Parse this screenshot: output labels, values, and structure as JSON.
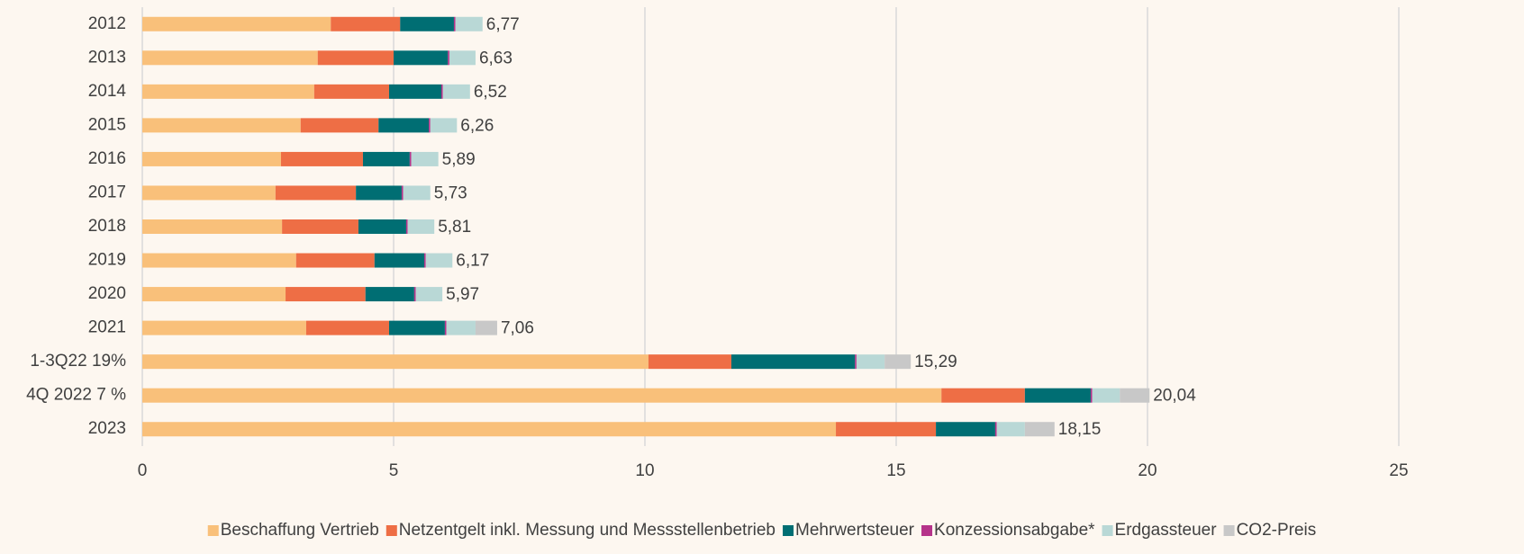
{
  "chart_data": {
    "type": "bar",
    "orientation": "horizontal",
    "stacked": true,
    "categories": [
      "2012",
      "2013",
      "2014",
      "2015",
      "2016",
      "2017",
      "2018",
      "2019",
      "2020",
      "2021",
      "1-3Q22 19%",
      "4Q 2022 7 %",
      "2023"
    ],
    "series": [
      {
        "name": "Beschaffung Vertrieb",
        "color": "#f9c07a",
        "values": [
          3.75,
          3.49,
          3.42,
          3.15,
          2.76,
          2.65,
          2.78,
          3.06,
          2.85,
          3.26,
          10.07,
          15.9,
          13.8
        ]
      },
      {
        "name": "Netzentgelt inkl. Messung und Messstellenbetrieb",
        "color": "#ee6e45",
        "values": [
          1.38,
          1.51,
          1.49,
          1.55,
          1.63,
          1.6,
          1.52,
          1.56,
          1.59,
          1.65,
          1.65,
          1.66,
          1.99
        ]
      },
      {
        "name": "Mehrwertsteuer",
        "color": "#006e73",
        "values": [
          1.07,
          1.08,
          1.04,
          1.0,
          0.93,
          0.91,
          0.95,
          0.99,
          0.97,
          1.11,
          2.46,
          1.31,
          1.18
        ]
      },
      {
        "name": "Konzessionsabgabe*",
        "color": "#b5338a",
        "values": [
          0.03,
          0.03,
          0.03,
          0.03,
          0.03,
          0.03,
          0.03,
          0.03,
          0.03,
          0.03,
          0.03,
          0.03,
          0.03
        ]
      },
      {
        "name": "Erdgassteuer",
        "color": "#b9d8d6",
        "values": [
          0.54,
          0.52,
          0.54,
          0.53,
          0.54,
          0.54,
          0.53,
          0.53,
          0.53,
          0.58,
          0.56,
          0.55,
          0.56
        ]
      },
      {
        "name": "CO2-Preis",
        "color": "#c8c8c8",
        "values": [
          null,
          null,
          null,
          null,
          null,
          null,
          null,
          null,
          null,
          0.43,
          0.52,
          0.59,
          0.59
        ]
      }
    ],
    "totals": {
      "values": [
        6.77,
        6.63,
        6.52,
        6.26,
        5.89,
        5.73,
        5.81,
        6.17,
        5.97,
        7.06,
        15.29,
        20.04,
        18.15
      ],
      "value_labels": [
        "6,77",
        "6,63",
        "6,52",
        "6,26",
        "5,89",
        "5,73",
        "5,81",
        "6,17",
        "5,97",
        "7,06",
        "15,29",
        "20,04",
        "18,15"
      ]
    },
    "xlim": [
      0,
      25
    ],
    "xticks": [
      0,
      5,
      10,
      15,
      20,
      25
    ],
    "grid": true,
    "legend": "bottom"
  }
}
